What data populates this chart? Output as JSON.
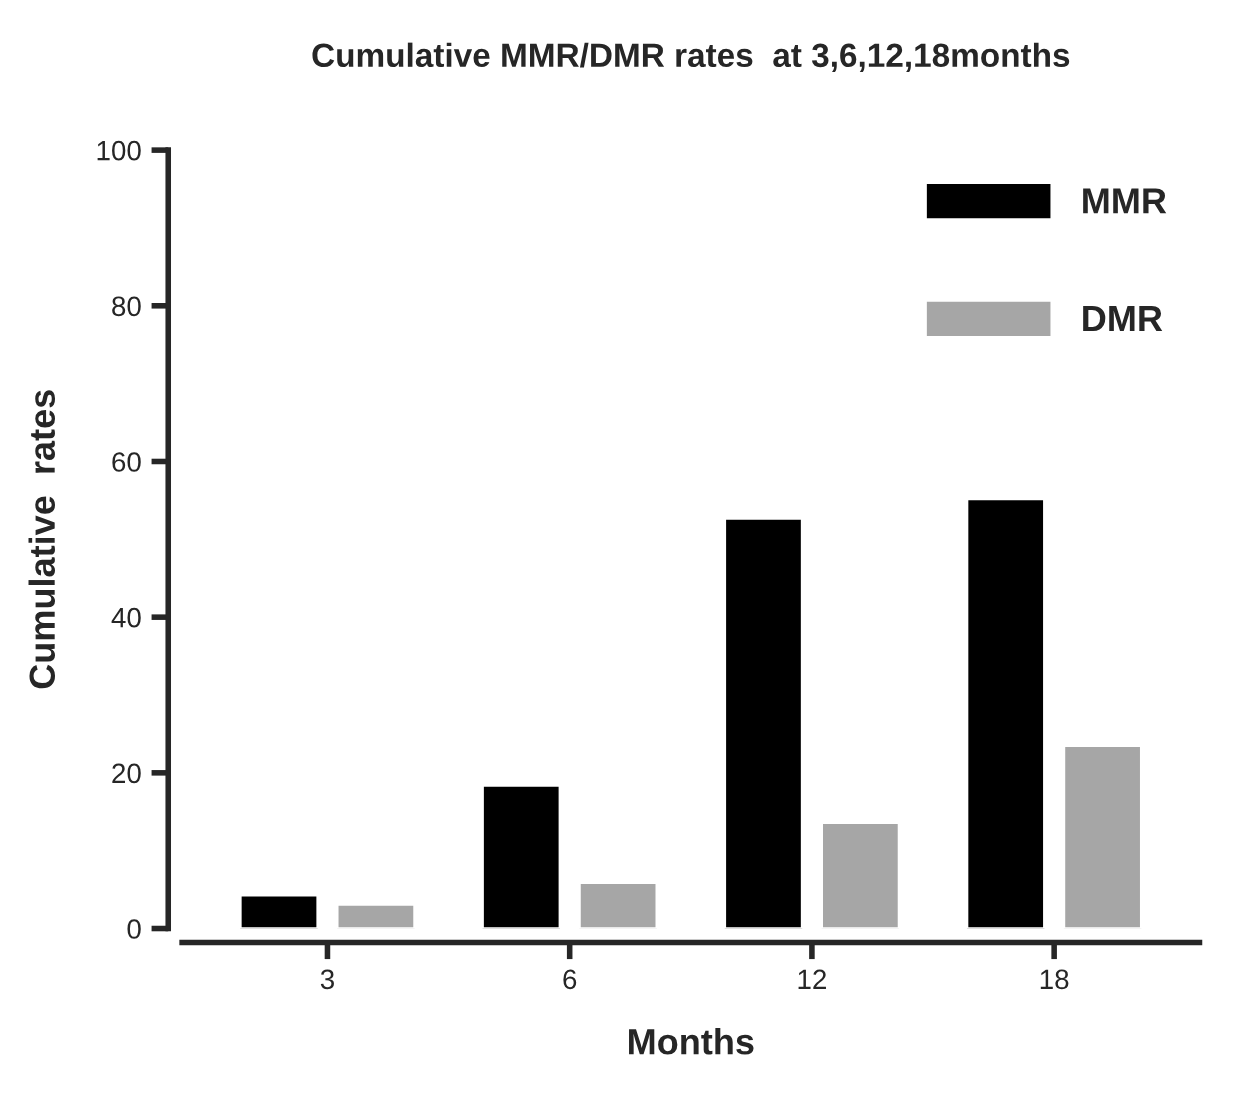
{
  "chart_data": {
    "type": "bar",
    "title": "Cumulative MMR/DMR rates  at 3,6,12,18months",
    "xlabel": "Months",
    "ylabel": "Cumulative  rates",
    "categories": [
      "3",
      "6",
      "12",
      "18"
    ],
    "series": [
      {
        "name": "MMR",
        "color": "#000000",
        "values": [
          4.3,
          18.4,
          52.7,
          55.2
        ]
      },
      {
        "name": "DMR",
        "color": "#a6a6a6",
        "values": [
          3.1,
          5.9,
          13.6,
          23.5
        ]
      }
    ],
    "ylim": [
      0,
      100
    ],
    "yticks": [
      0,
      20,
      40,
      60,
      80,
      100
    ],
    "grid": false,
    "legend": "top right"
  }
}
